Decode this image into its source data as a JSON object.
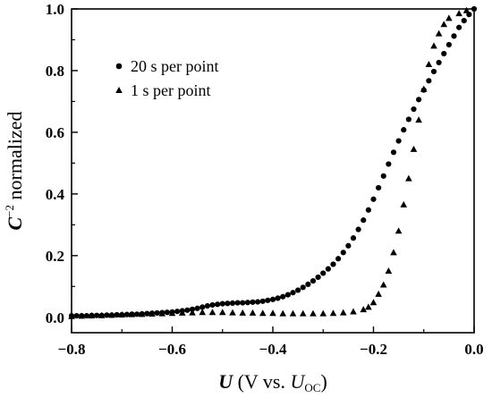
{
  "chart_data": {
    "type": "scatter",
    "xlim": [
      -0.8,
      0.0
    ],
    "ylim": [
      -0.05,
      1.0
    ],
    "x_ticks": [
      "−0.8",
      "−0.6",
      "−0.4",
      "−0.2",
      "0.0"
    ],
    "y_ticks": [
      "0.0",
      "0.2",
      "0.4",
      "0.6",
      "0.8",
      "1.0"
    ],
    "x_tick_values": [
      -0.8,
      -0.6,
      -0.4,
      -0.2,
      0.0
    ],
    "y_tick_values": [
      0.0,
      0.2,
      0.4,
      0.6,
      0.8,
      1.0
    ],
    "xlabel": {
      "bold": "U",
      "main": " (V vs. ",
      "italic": "U",
      "sub": "OC",
      "close": ")"
    },
    "ylabel": {
      "bold": "C",
      "sup": "−2",
      "rest": " normalized"
    },
    "legend_position": "top-left",
    "grid": false,
    "series": [
      {
        "name": "20 s per point",
        "marker": "circle",
        "color": "#000000",
        "points": [
          [
            -0.8,
            0.005
          ],
          [
            -0.79,
            0.005
          ],
          [
            -0.78,
            0.005
          ],
          [
            -0.77,
            0.005
          ],
          [
            -0.76,
            0.006
          ],
          [
            -0.75,
            0.006
          ],
          [
            -0.74,
            0.006
          ],
          [
            -0.73,
            0.007
          ],
          [
            -0.72,
            0.007
          ],
          [
            -0.71,
            0.008
          ],
          [
            -0.7,
            0.008
          ],
          [
            -0.69,
            0.009
          ],
          [
            -0.68,
            0.01
          ],
          [
            -0.67,
            0.01
          ],
          [
            -0.66,
            0.011
          ],
          [
            -0.65,
            0.012
          ],
          [
            -0.64,
            0.013
          ],
          [
            -0.63,
            0.014
          ],
          [
            -0.62,
            0.015
          ],
          [
            -0.61,
            0.016
          ],
          [
            -0.6,
            0.017
          ],
          [
            -0.59,
            0.019
          ],
          [
            -0.58,
            0.021
          ],
          [
            -0.57,
            0.023
          ],
          [
            -0.56,
            0.026
          ],
          [
            -0.55,
            0.029
          ],
          [
            -0.54,
            0.033
          ],
          [
            -0.53,
            0.037
          ],
          [
            -0.52,
            0.04
          ],
          [
            -0.51,
            0.042
          ],
          [
            -0.5,
            0.044
          ],
          [
            -0.49,
            0.045
          ],
          [
            -0.48,
            0.046
          ],
          [
            -0.47,
            0.047
          ],
          [
            -0.46,
            0.047
          ],
          [
            -0.45,
            0.048
          ],
          [
            -0.44,
            0.049
          ],
          [
            -0.43,
            0.05
          ],
          [
            -0.42,
            0.052
          ],
          [
            -0.41,
            0.055
          ],
          [
            -0.4,
            0.058
          ],
          [
            -0.39,
            0.062
          ],
          [
            -0.38,
            0.067
          ],
          [
            -0.37,
            0.073
          ],
          [
            -0.36,
            0.08
          ],
          [
            -0.35,
            0.088
          ],
          [
            -0.34,
            0.097
          ],
          [
            -0.33,
            0.107
          ],
          [
            -0.32,
            0.118
          ],
          [
            -0.31,
            0.13
          ],
          [
            -0.3,
            0.143
          ],
          [
            -0.29,
            0.157
          ],
          [
            -0.28,
            0.172
          ],
          [
            -0.27,
            0.19
          ],
          [
            -0.26,
            0.21
          ],
          [
            -0.25,
            0.232
          ],
          [
            -0.24,
            0.257
          ],
          [
            -0.23,
            0.285
          ],
          [
            -0.22,
            0.315
          ],
          [
            -0.21,
            0.348
          ],
          [
            -0.2,
            0.383
          ],
          [
            -0.19,
            0.42
          ],
          [
            -0.18,
            0.458
          ],
          [
            -0.17,
            0.497
          ],
          [
            -0.16,
            0.535
          ],
          [
            -0.15,
            0.572
          ],
          [
            -0.14,
            0.608
          ],
          [
            -0.13,
            0.642
          ],
          [
            -0.12,
            0.675
          ],
          [
            -0.11,
            0.706
          ],
          [
            -0.1,
            0.737
          ],
          [
            -0.09,
            0.767
          ],
          [
            -0.08,
            0.797
          ],
          [
            -0.07,
            0.826
          ],
          [
            -0.06,
            0.855
          ],
          [
            -0.05,
            0.884
          ],
          [
            -0.04,
            0.912
          ],
          [
            -0.03,
            0.94
          ],
          [
            -0.02,
            0.962
          ],
          [
            -0.01,
            0.982
          ],
          [
            0.0,
            1.0
          ]
        ]
      },
      {
        "name": "1 s per point",
        "marker": "triangle",
        "color": "#000000",
        "points": [
          [
            -0.8,
            0.003
          ],
          [
            -0.78,
            0.004
          ],
          [
            -0.76,
            0.005
          ],
          [
            -0.74,
            0.006
          ],
          [
            -0.72,
            0.007
          ],
          [
            -0.7,
            0.008
          ],
          [
            -0.68,
            0.009
          ],
          [
            -0.66,
            0.01
          ],
          [
            -0.64,
            0.011
          ],
          [
            -0.62,
            0.012
          ],
          [
            -0.6,
            0.013
          ],
          [
            -0.58,
            0.014
          ],
          [
            -0.56,
            0.015
          ],
          [
            -0.54,
            0.016
          ],
          [
            -0.52,
            0.016
          ],
          [
            -0.5,
            0.016
          ],
          [
            -0.48,
            0.015
          ],
          [
            -0.46,
            0.014
          ],
          [
            -0.44,
            0.014
          ],
          [
            -0.42,
            0.013
          ],
          [
            -0.4,
            0.013
          ],
          [
            -0.38,
            0.012
          ],
          [
            -0.36,
            0.012
          ],
          [
            -0.34,
            0.012
          ],
          [
            -0.32,
            0.012
          ],
          [
            -0.3,
            0.012
          ],
          [
            -0.28,
            0.013
          ],
          [
            -0.26,
            0.015
          ],
          [
            -0.24,
            0.018
          ],
          [
            -0.22,
            0.025
          ],
          [
            -0.21,
            0.033
          ],
          [
            -0.2,
            0.048
          ],
          [
            -0.19,
            0.075
          ],
          [
            -0.18,
            0.105
          ],
          [
            -0.17,
            0.15
          ],
          [
            -0.16,
            0.21
          ],
          [
            -0.15,
            0.28
          ],
          [
            -0.14,
            0.365
          ],
          [
            -0.13,
            0.45
          ],
          [
            -0.12,
            0.545
          ],
          [
            -0.11,
            0.64
          ],
          [
            -0.1,
            0.74
          ],
          [
            -0.09,
            0.82
          ],
          [
            -0.08,
            0.88
          ],
          [
            -0.07,
            0.92
          ],
          [
            -0.06,
            0.95
          ],
          [
            -0.05,
            0.97
          ],
          [
            -0.03,
            0.985
          ],
          [
            -0.015,
            0.995
          ]
        ]
      }
    ]
  }
}
